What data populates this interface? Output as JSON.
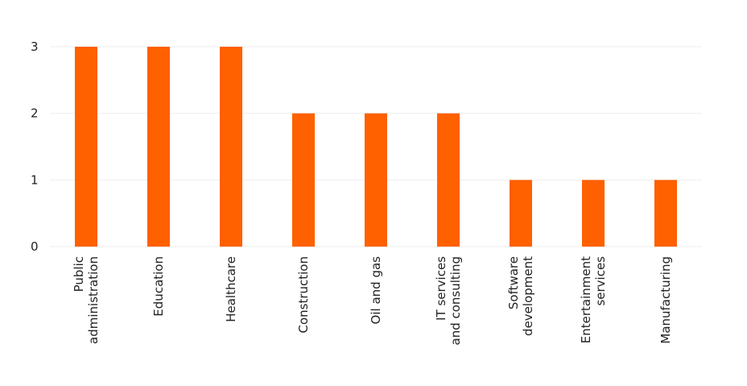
{
  "chart_data": {
    "type": "bar",
    "title": "",
    "xlabel": "",
    "ylabel": "",
    "ylim": [
      0,
      3
    ],
    "yticks": [
      0,
      1,
      2,
      3
    ],
    "grid": true,
    "bar_color": "#ff6000",
    "categories": [
      "Public\nadministration",
      "Education",
      "Healthcare",
      "Construction",
      "Oil and gas",
      "IT services\nand consulting",
      "Software\ndevelopment",
      "Entertainment\nservices",
      "Manufacturing"
    ],
    "values": [
      3,
      3,
      3,
      2,
      2,
      2,
      1,
      1,
      1
    ]
  }
}
